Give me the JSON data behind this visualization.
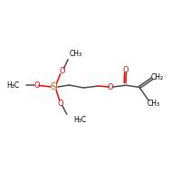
{
  "background_color": "#ffffff",
  "bond_color": "#4a4a4a",
  "o_color": "#ff0000",
  "si_color": "#b5651d",
  "text_color": "#000000",
  "figsize": [
    2.0,
    2.0
  ],
  "dpi": 100,
  "xlim": [
    0,
    10
  ],
  "ylim": [
    0,
    10
  ],
  "bond_lw": 1.1,
  "font_size": 6.0,
  "si_font_size": 7.0
}
